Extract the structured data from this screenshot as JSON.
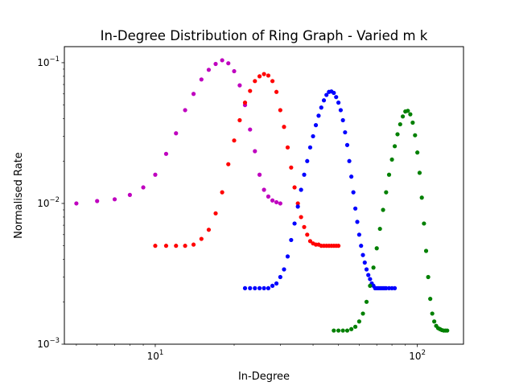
{
  "chart_data": {
    "type": "scatter",
    "title": "In-Degree Distribution of Ring Graph - Varied m k",
    "xlabel": "In-Degree",
    "ylabel": "Normalised Rate",
    "xscale": "log",
    "yscale": "log",
    "xlim": [
      4.5,
      150
    ],
    "ylim": [
      0.001,
      0.13
    ],
    "x_ticks": [
      {
        "value": 10,
        "base": "10",
        "exp": "1"
      },
      {
        "value": 100,
        "base": "10",
        "exp": "2"
      }
    ],
    "y_ticks": [
      {
        "value": 0.001,
        "base": "10",
        "exp": "−3"
      },
      {
        "value": 0.01,
        "base": "10",
        "exp": "−2"
      },
      {
        "value": 0.1,
        "base": "10",
        "exp": "−1"
      }
    ],
    "grid": false,
    "legend": "none",
    "series": [
      {
        "color": "#bf00bf",
        "x": [
          5,
          6,
          7,
          8,
          9,
          10,
          11,
          12,
          13,
          14,
          15,
          16,
          17,
          18,
          19,
          20,
          21,
          22,
          23,
          24,
          25,
          26,
          27,
          28,
          29,
          30
        ],
        "y": [
          0.01,
          0.0104,
          0.0107,
          0.0115,
          0.013,
          0.016,
          0.0225,
          0.0315,
          0.046,
          0.06,
          0.076,
          0.089,
          0.098,
          0.104,
          0.099,
          0.087,
          0.069,
          0.05,
          0.0335,
          0.0235,
          0.016,
          0.0125,
          0.0112,
          0.0105,
          0.0102,
          0.01
        ]
      },
      {
        "color": "#ff0000",
        "x": [
          10,
          11,
          12,
          13,
          14,
          15,
          16,
          17,
          18,
          19,
          20,
          21,
          22,
          23,
          24,
          25,
          26,
          27,
          28,
          29,
          30,
          31,
          32,
          33,
          34,
          35,
          36,
          37,
          38,
          39,
          40,
          41,
          42,
          43,
          44,
          45,
          46,
          47,
          48,
          49,
          50
        ],
        "y": [
          0.005,
          0.005,
          0.005,
          0.005,
          0.0051,
          0.0056,
          0.0065,
          0.0085,
          0.012,
          0.019,
          0.028,
          0.039,
          0.052,
          0.063,
          0.074,
          0.08,
          0.083,
          0.081,
          0.074,
          0.062,
          0.046,
          0.035,
          0.025,
          0.018,
          0.013,
          0.01,
          0.008,
          0.0068,
          0.006,
          0.0054,
          0.0052,
          0.0051,
          0.0051,
          0.005,
          0.005,
          0.005,
          0.005,
          0.005,
          0.005,
          0.005,
          0.005
        ]
      },
      {
        "color": "#0000ff",
        "x": [
          22,
          23,
          24,
          25,
          26,
          27,
          28,
          29,
          30,
          31,
          32,
          33,
          34,
          35,
          36,
          37,
          38,
          39,
          40,
          41,
          42,
          43,
          44,
          45,
          46,
          47,
          48,
          49,
          50,
          51,
          52,
          53,
          54,
          55,
          56,
          57,
          58,
          59,
          60,
          61,
          62,
          63,
          64,
          65,
          66,
          67,
          68,
          69,
          70,
          71,
          72,
          73,
          74,
          75,
          76,
          78,
          80,
          82
        ],
        "y": [
          0.0025,
          0.0025,
          0.0025,
          0.0025,
          0.0025,
          0.0025,
          0.0026,
          0.0027,
          0.003,
          0.0034,
          0.0042,
          0.0055,
          0.0072,
          0.0095,
          0.0125,
          0.016,
          0.02,
          0.025,
          0.03,
          0.036,
          0.042,
          0.048,
          0.054,
          0.059,
          0.062,
          0.0625,
          0.061,
          0.057,
          0.052,
          0.046,
          0.039,
          0.032,
          0.026,
          0.02,
          0.0155,
          0.012,
          0.0092,
          0.0074,
          0.006,
          0.005,
          0.0043,
          0.0038,
          0.0034,
          0.0031,
          0.0029,
          0.0027,
          0.0026,
          0.0025,
          0.0025,
          0.0025,
          0.0025,
          0.0025,
          0.0025,
          0.0025,
          0.0025,
          0.0025,
          0.0025,
          0.0025
        ]
      },
      {
        "color": "#008000",
        "x": [
          48,
          50,
          52,
          54,
          56,
          58,
          60,
          62,
          64,
          66,
          68,
          70,
          72,
          74,
          76,
          78,
          80,
          82,
          84,
          86,
          88,
          90,
          92,
          94,
          96,
          98,
          100,
          102,
          104,
          106,
          108,
          110,
          112,
          114,
          116,
          118,
          120,
          122,
          124,
          126,
          128,
          130
        ],
        "y": [
          0.00125,
          0.00125,
          0.00125,
          0.00125,
          0.00128,
          0.00133,
          0.00145,
          0.00165,
          0.002,
          0.0026,
          0.0035,
          0.0048,
          0.0066,
          0.009,
          0.012,
          0.016,
          0.0205,
          0.0255,
          0.031,
          0.0365,
          0.0415,
          0.045,
          0.0455,
          0.043,
          0.0375,
          0.0305,
          0.023,
          0.0165,
          0.011,
          0.0072,
          0.0046,
          0.003,
          0.0021,
          0.00165,
          0.00145,
          0.00135,
          0.0013,
          0.00128,
          0.00126,
          0.00125,
          0.00125,
          0.00125
        ]
      }
    ]
  }
}
